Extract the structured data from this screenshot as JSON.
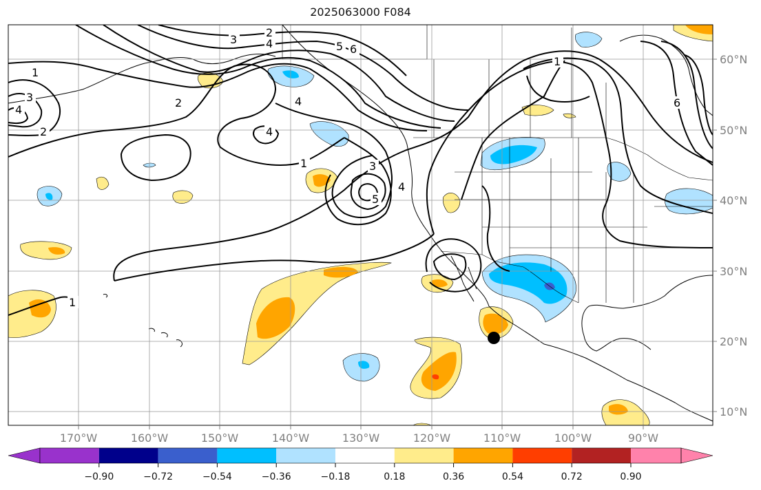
{
  "title": "2025063000 F084",
  "map": {
    "projection": "lat-lon",
    "lon_range_deg": [
      -180,
      -80
    ],
    "lat_range_deg": [
      8,
      66
    ],
    "lon_ticks": [
      "170°W",
      "160°W",
      "150°W",
      "140°W",
      "130°W",
      "120°W",
      "110°W",
      "100°W",
      "90°W"
    ],
    "lat_ticks": [
      "60°N",
      "50°N",
      "40°N",
      "30°N",
      "20°N",
      "10°N"
    ],
    "grid": true,
    "contour_labels": [
      "1",
      "2",
      "3",
      "4",
      "5",
      "6"
    ],
    "marker": {
      "type": "point",
      "lon": -110.8,
      "lat": 20.5,
      "color": "#000000"
    }
  },
  "colorbar": {
    "extend": "both",
    "colors": [
      "#9932cc",
      "#00008b",
      "#3a5fcd",
      "#00bfff",
      "#b0e2ff",
      "#ffffff",
      "#ffec8b",
      "#ffa500",
      "#ff3e00",
      "#b22222",
      "#ff82ab"
    ],
    "tick_labels": [
      "−0.90",
      "−0.72",
      "−0.54",
      "−0.36",
      "−0.18",
      "0.18",
      "0.36",
      "0.54",
      "0.72",
      "0.90"
    ]
  }
}
